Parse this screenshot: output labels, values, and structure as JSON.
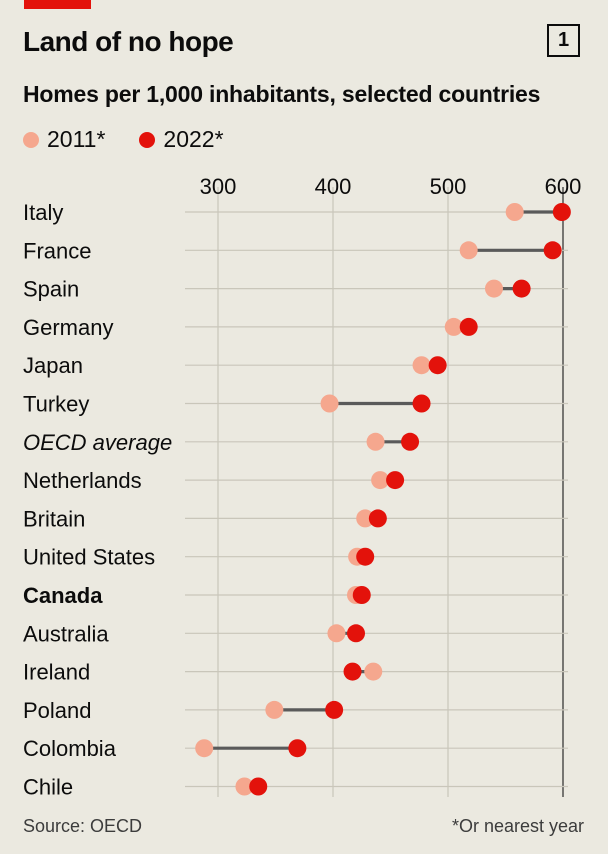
{
  "header": {
    "title": "Land of no hope",
    "chart_number": "1",
    "subtitle": "Homes per 1,000 inhabitants, selected countries"
  },
  "legend": [
    {
      "label": "2011*",
      "color": "#f5a78e"
    },
    {
      "label": "2022*",
      "color": "#e3120b"
    }
  ],
  "footer": {
    "source": "Source: OECD",
    "note": "*Or nearest year"
  },
  "chart_data": {
    "type": "dot-range",
    "title": "Land of no hope",
    "subtitle": "Homes per 1,000 inhabitants, selected countries",
    "xlabel": "",
    "ylabel": "",
    "xlim": [
      280,
      600
    ],
    "xticks": [
      300,
      400,
      500,
      600
    ],
    "grid": true,
    "series": [
      {
        "name": "2011*",
        "color": "#f5a78e"
      },
      {
        "name": "2022*",
        "color": "#e3120b"
      }
    ],
    "rows": [
      {
        "label": "Italy",
        "v2011": 558,
        "v2022": 599,
        "style": "normal"
      },
      {
        "label": "France",
        "v2011": 518,
        "v2022": 591,
        "style": "normal"
      },
      {
        "label": "Spain",
        "v2011": 540,
        "v2022": 564,
        "style": "normal"
      },
      {
        "label": "Germany",
        "v2011": 505,
        "v2022": 518,
        "style": "normal"
      },
      {
        "label": "Japan",
        "v2011": 477,
        "v2022": 491,
        "style": "normal"
      },
      {
        "label": "Turkey",
        "v2011": 397,
        "v2022": 477,
        "style": "normal"
      },
      {
        "label": "OECD average",
        "v2011": 437,
        "v2022": 467,
        "style": "italic"
      },
      {
        "label": "Netherlands",
        "v2011": 441,
        "v2022": 454,
        "style": "normal"
      },
      {
        "label": "Britain",
        "v2011": 428,
        "v2022": 439,
        "style": "normal"
      },
      {
        "label": "United States",
        "v2011": 421,
        "v2022": 428,
        "style": "normal"
      },
      {
        "label": "Canada",
        "v2011": 420,
        "v2022": 425,
        "style": "bold"
      },
      {
        "label": "Australia",
        "v2011": 403,
        "v2022": 420,
        "style": "normal"
      },
      {
        "label": "Ireland",
        "v2011": 435,
        "v2022": 417,
        "style": "normal"
      },
      {
        "label": "Poland",
        "v2011": 349,
        "v2022": 401,
        "style": "normal"
      },
      {
        "label": "Colombia",
        "v2011": 288,
        "v2022": 369,
        "style": "normal"
      },
      {
        "label": "Chile",
        "v2011": 323,
        "v2022": 335,
        "style": "normal"
      }
    ]
  }
}
